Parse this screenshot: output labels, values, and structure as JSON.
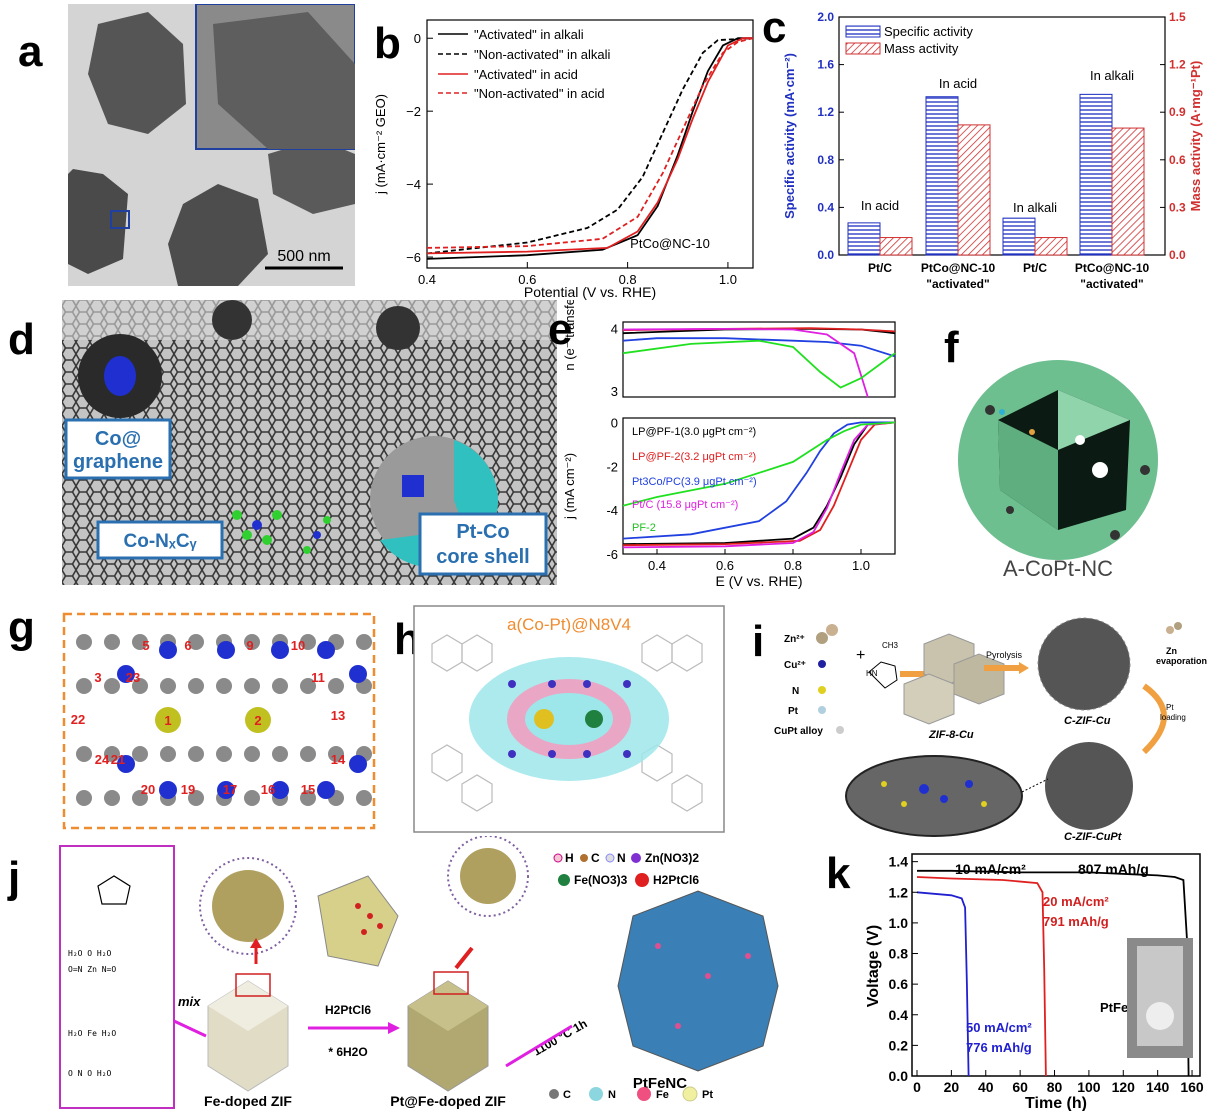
{
  "panel_labels": {
    "a": "a",
    "b": "b",
    "c": "c",
    "d": "d",
    "e": "e",
    "f": "f",
    "g": "g",
    "h": "h",
    "i": "i",
    "j": "j",
    "k": "k"
  },
  "panel_a": {
    "scalebar": "500 nm"
  },
  "panel_b": {
    "legend": [
      "\"Activated\" in alkali",
      "\"Non-activated\" in alkali",
      "\"Activated\" in acid",
      "\"Non-activated\" in acid"
    ],
    "xlabel": "Potential (V vs. RHE)",
    "ylabel": "j (mA·cm⁻² GEO)",
    "xticks": [
      "0.4",
      "0.6",
      "0.8",
      "1.0"
    ],
    "yticks": [
      "0",
      "−2",
      "−4",
      "−6"
    ],
    "annotation": "PtCo@NC-10"
  },
  "panel_c": {
    "legend": [
      "Specific activity",
      "Mass activity"
    ],
    "ylabel_left": "Specific activity (mA·cm⁻²)",
    "ylabel_right": "Mass activity (A·mg⁻¹Pt)",
    "yticks_left": [
      "0.0",
      "0.4",
      "0.8",
      "1.2",
      "1.6",
      "2.0"
    ],
    "yticks_right": [
      "0.0",
      "0.3",
      "0.6",
      "0.9",
      "1.2",
      "1.5"
    ],
    "xticks": [
      "Pt/C",
      "PtCo@NC-10",
      "Pt/C",
      "PtCo@NC-10"
    ],
    "xticks2": [
      "",
      "\"activated\"",
      "",
      "\"activated\""
    ],
    "annotations": [
      "In acid",
      "In acid",
      "In alkali",
      "In alkali"
    ]
  },
  "panel_d": {
    "labels": [
      "Co@",
      "graphene",
      "Co-NₓCᵧ",
      "Pt-Co",
      "core shell"
    ]
  },
  "panel_e": {
    "ylabel_top": "n (e⁻ transfer)",
    "ylabel_bottom": "j (mA cm⁻²)",
    "xlabel": "E (V vs. RHE)",
    "xticks": [
      "0.4",
      "0.6",
      "0.8",
      "1.0"
    ],
    "yticks_top": [
      "3",
      "4"
    ],
    "yticks_bottom": [
      "0",
      "-2",
      "-4",
      "-6"
    ],
    "legend": [
      "LP@PF-1(3.0 μgPt cm⁻²)",
      "LP@PF-2(3.2 μgPt cm⁻²)",
      "Pt3Co/PC(3.9 μgPt cm⁻²)",
      "Pt/C (15.8 μgPt cm⁻²)",
      "PF-2"
    ]
  },
  "panel_f": {
    "caption": "A-CoPt-NC"
  },
  "panel_g": {
    "atom_labels": [
      "1",
      "2",
      "3",
      "5",
      "6",
      "9",
      "10",
      "11",
      "13",
      "14",
      "15",
      "16",
      "17",
      "19",
      "20",
      "21",
      "22",
      "23",
      "24"
    ]
  },
  "panel_h": {
    "title": "a(Co-Pt)@N8V4"
  },
  "panel_i": {
    "legend": [
      "Zn²⁺",
      "Cu²⁺",
      "N",
      "Pt",
      "CuPt alloy"
    ],
    "arrows": [
      "Pyrolysis",
      "Pt",
      "loading"
    ],
    "labels": [
      "ZIF-8-Cu",
      "C-ZIF-Cu",
      "C-ZIF-CuPt",
      "Zn",
      "evaporation"
    ],
    "methyl": "CH3"
  },
  "panel_j": {
    "legend_top": [
      "H",
      "C",
      "N",
      "Zn(NO3)2",
      "Fe(NO3)3",
      "H2PtCl6"
    ],
    "legend_bottom": [
      "C",
      "N",
      "Fe",
      "Pt"
    ],
    "steps": [
      "mix",
      "H2PtCl6",
      "* 6H2O",
      "1100 °C 1h"
    ],
    "labels": [
      "Fe-doped ZIF",
      "Pt@Fe-doped ZIF",
      "PtFeNC"
    ]
  },
  "panel_k": {
    "ylabel": "Voltage (V)",
    "xlabel": "Time (h)",
    "xticks": [
      "0",
      "20",
      "40",
      "60",
      "80",
      "100",
      "120",
      "140",
      "160"
    ],
    "yticks": [
      "0.0",
      "0.2",
      "0.4",
      "0.6",
      "0.8",
      "1.0",
      "1.2",
      "1.4"
    ],
    "annotations": [
      "10 mA/cm²",
      "807 mAh/g",
      "20 mA/cm²",
      "791 mAh/g",
      "50 mA/cm²",
      "776 mAh/g",
      "PtFeNC"
    ]
  },
  "chart_data": [
    {
      "type": "line",
      "panel": "b",
      "xlabel": "Potential (V vs. RHE)",
      "ylabel": "j (mA·cm⁻² GEO)",
      "xlim": [
        0.4,
        1.05
      ],
      "ylim": [
        -6.3,
        0.5
      ],
      "series": [
        {
          "name": "\"Activated\" in alkali",
          "color": "#000000",
          "dash": "solid",
          "x": [
            0.4,
            0.6,
            0.75,
            0.82,
            0.86,
            0.9,
            0.93,
            0.96,
            0.99,
            1.02,
            1.05
          ],
          "y": [
            -6.05,
            -5.95,
            -5.8,
            -5.4,
            -4.6,
            -3.2,
            -2.0,
            -0.9,
            -0.2,
            0.0,
            0.0
          ]
        },
        {
          "name": "\"Non-activated\" in alkali",
          "color": "#000000",
          "dash": "dashed",
          "x": [
            0.4,
            0.6,
            0.72,
            0.78,
            0.83,
            0.87,
            0.91,
            0.95,
            0.98,
            1.05
          ],
          "y": [
            -5.9,
            -5.6,
            -5.2,
            -4.7,
            -3.8,
            -2.6,
            -1.4,
            -0.4,
            -0.05,
            0.0
          ]
        },
        {
          "name": "\"Activated\" in acid",
          "color": "#e02020",
          "dash": "solid",
          "x": [
            0.4,
            0.6,
            0.76,
            0.82,
            0.86,
            0.9,
            0.93,
            0.96,
            1.0,
            1.03,
            1.05
          ],
          "y": [
            -5.9,
            -5.85,
            -5.75,
            -5.3,
            -4.5,
            -3.3,
            -2.2,
            -1.2,
            -0.2,
            0.0,
            0.0
          ]
        },
        {
          "name": "\"Non-activated\" in acid",
          "color": "#e02020",
          "dash": "dashed",
          "x": [
            0.4,
            0.6,
            0.75,
            0.82,
            0.87,
            0.91,
            0.95,
            0.99,
            1.02,
            1.05
          ],
          "y": [
            -5.75,
            -5.7,
            -5.5,
            -4.9,
            -3.7,
            -2.5,
            -1.3,
            -0.4,
            -0.1,
            0.0
          ]
        }
      ]
    },
    {
      "type": "bar",
      "panel": "c",
      "categories": [
        "Pt/C (In acid)",
        "PtCo@NC-10 \"activated\" (In acid)",
        "Pt/C (In alkali)",
        "PtCo@NC-10 \"activated\" (In alkali)"
      ],
      "series": [
        {
          "name": "Specific activity",
          "axis": "left",
          "color": "#2030c0",
          "values": [
            0.27,
            1.33,
            0.31,
            1.35
          ]
        },
        {
          "name": "Mass activity",
          "axis": "right",
          "color": "#d03030",
          "values": [
            0.11,
            0.82,
            0.11,
            0.8
          ]
        }
      ],
      "ylim_left": [
        0,
        2.0
      ],
      "ylim_right": [
        0,
        1.5
      ]
    },
    {
      "type": "line",
      "panel": "e-top",
      "xlim": [
        0.3,
        1.1
      ],
      "ylim": [
        2.9,
        4.1
      ],
      "series": [
        {
          "color": "#000000",
          "x": [
            0.3,
            0.6,
            0.85,
            1.0,
            1.1
          ],
          "y": [
            3.92,
            3.98,
            3.99,
            3.98,
            3.92
          ]
        },
        {
          "color": "#e02020",
          "x": [
            0.3,
            0.6,
            0.85,
            1.0,
            1.1
          ],
          "y": [
            3.97,
            3.99,
            4.0,
            3.98,
            3.95
          ]
        },
        {
          "color": "#2040e0",
          "x": [
            0.3,
            0.4,
            0.6,
            0.8,
            0.9,
            1.0,
            1.1
          ],
          "y": [
            3.8,
            3.84,
            3.84,
            3.8,
            3.78,
            3.72,
            3.55
          ]
        },
        {
          "color": "#e020e0",
          "x": [
            0.3,
            0.6,
            0.8,
            0.9,
            0.98,
            1.02
          ],
          "y": [
            3.98,
            3.99,
            3.98,
            3.9,
            3.6,
            2.9
          ]
        },
        {
          "color": "#20e020",
          "x": [
            0.3,
            0.5,
            0.7,
            0.8,
            0.88,
            0.94,
            1.0,
            1.1
          ],
          "y": [
            3.6,
            3.75,
            3.8,
            3.7,
            3.3,
            3.05,
            3.2,
            3.6
          ]
        }
      ]
    },
    {
      "type": "line",
      "panel": "e-bottom",
      "xlabel": "E (V vs. RHE)",
      "ylabel": "j (mA cm⁻²)",
      "xlim": [
        0.3,
        1.1
      ],
      "ylim": [
        -6,
        0.2
      ],
      "series": [
        {
          "name": "LP@PF-1(3.0 μgPt cm⁻²)",
          "color": "#000000",
          "x": [
            0.3,
            0.6,
            0.8,
            0.86,
            0.9,
            0.94,
            0.98,
            1.02,
            1.1
          ],
          "y": [
            -5.55,
            -5.5,
            -5.3,
            -4.8,
            -3.8,
            -2.5,
            -1.0,
            -0.1,
            0.0
          ]
        },
        {
          "name": "LP@PF-2(3.2 μgPt cm⁻²)",
          "color": "#e02020",
          "x": [
            0.3,
            0.6,
            0.82,
            0.88,
            0.92,
            0.96,
            1.0,
            1.04,
            1.1
          ],
          "y": [
            -5.6,
            -5.55,
            -5.4,
            -4.9,
            -3.8,
            -2.3,
            -0.8,
            -0.1,
            0.0
          ]
        },
        {
          "name": "Pt3Co/PC(3.9 μgPt cm⁻²)",
          "color": "#2040e0",
          "x": [
            0.3,
            0.5,
            0.7,
            0.78,
            0.84,
            0.88,
            0.92,
            0.96,
            1.0,
            1.1
          ],
          "y": [
            -5.3,
            -5.1,
            -4.5,
            -3.6,
            -2.3,
            -1.3,
            -0.5,
            -0.1,
            0.0,
            0.0
          ]
        },
        {
          "name": "Pt/C (15.8 μgPt cm⁻²)",
          "color": "#e020e0",
          "x": [
            0.3,
            0.6,
            0.8,
            0.86,
            0.9,
            0.94,
            0.98,
            1.02,
            1.1
          ],
          "y": [
            -5.7,
            -5.65,
            -5.5,
            -5.0,
            -3.9,
            -2.3,
            -0.8,
            -0.1,
            0.0
          ]
        },
        {
          "name": "PF-2",
          "color": "#20e020",
          "x": [
            0.3,
            0.4,
            0.6,
            0.8,
            0.9,
            0.95,
            1.0,
            1.1
          ],
          "y": [
            -3.8,
            -3.4,
            -2.8,
            -1.8,
            -0.8,
            -0.4,
            -0.1,
            0.0
          ]
        }
      ]
    },
    {
      "type": "line",
      "panel": "k",
      "xlabel": "Time (h)",
      "ylabel": "Voltage (V)",
      "xlim": [
        0,
        160
      ],
      "ylim": [
        0,
        1.45
      ],
      "series": [
        {
          "name": "10 mA/cm²",
          "color": "#000000",
          "x": [
            0,
            20,
            60,
            100,
            140,
            150,
            155,
            157,
            158
          ],
          "y": [
            1.34,
            1.34,
            1.33,
            1.33,
            1.31,
            1.3,
            1.28,
            0.9,
            0.0
          ]
        },
        {
          "name": "20 mA/cm²",
          "color": "#e02020",
          "x": [
            0,
            20,
            50,
            70,
            73,
            74,
            75
          ],
          "y": [
            1.3,
            1.29,
            1.28,
            1.26,
            1.2,
            0.7,
            0.0
          ]
        },
        {
          "name": "50 mA/cm²",
          "color": "#2020d0",
          "x": [
            0,
            10,
            20,
            26,
            28,
            29,
            30
          ],
          "y": [
            1.2,
            1.19,
            1.18,
            1.16,
            1.1,
            0.6,
            0.0
          ]
        }
      ]
    }
  ]
}
